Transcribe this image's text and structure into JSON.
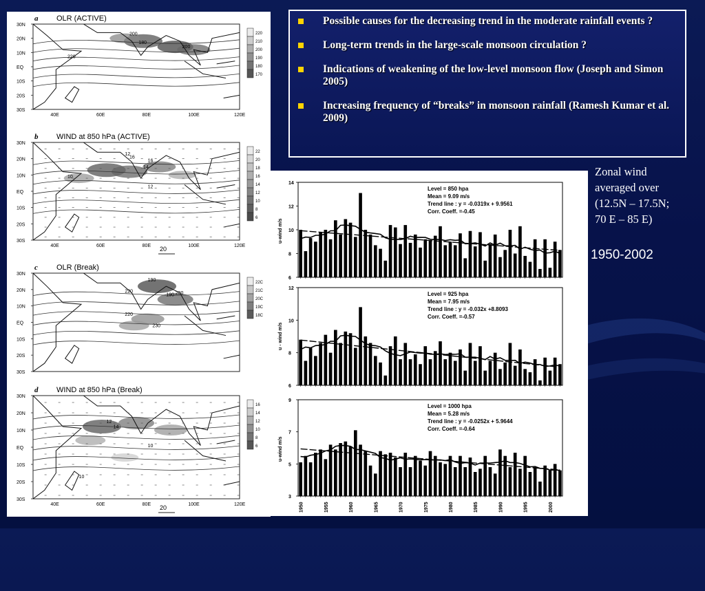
{
  "bullets": [
    "Possible causes for the decreasing trend in the moderate rainfall events ?",
    "Long-term trends in the large-scale monsoon circulation ?",
    "Indications of weakening of the low-level monsoon flow (Joseph and Simon 2005)",
    "Increasing frequency of  “breaks” in monsoon rainfall (Ramesh Kumar et al. 2009)"
  ],
  "zonal_note": [
    "Zonal wind",
    "averaged over",
    "(12.5N – 17.5N;",
    "70 E – 85 E)"
  ],
  "period": "1950-2002",
  "maps": [
    {
      "letter": "a",
      "title": "OLR (ACTIVE)",
      "show_lon": true,
      "legend": [
        "220",
        "210",
        "200",
        "190",
        "180",
        "170"
      ],
      "scale": ""
    },
    {
      "letter": "b",
      "title": "WIND at 850 hPa (ACTIVE)",
      "show_lon": true,
      "legend": [
        "22",
        "20",
        "18",
        "16",
        "14",
        "12",
        "10",
        "8",
        "6"
      ],
      "scale": "20"
    },
    {
      "letter": "c",
      "title": "OLR (Break)",
      "show_lon": false,
      "legend": [
        "22C",
        "21C",
        "20C",
        "19C",
        "18C"
      ],
      "scale": ""
    },
    {
      "letter": "d",
      "title": "WIND at 850 hPa (Break)",
      "show_lon": true,
      "legend": [
        "16",
        "14",
        "12",
        "10",
        "8",
        "6"
      ],
      "scale": "20"
    }
  ],
  "lat_labels": [
    "30N",
    "20N",
    "10N",
    "EQ",
    "10S",
    "20S",
    "30S"
  ],
  "lon_labels": [
    "40E",
    "60E",
    "80E",
    "100E",
    "120E"
  ],
  "map_annotations": [
    [
      "200",
      "180",
      "200",
      "220"
    ],
    [
      "12",
      "16",
      "14",
      "16",
      "10",
      "12"
    ],
    [
      "190",
      "190",
      "200",
      "220",
      "220",
      "230"
    ],
    [
      "12",
      "14",
      "10",
      "10"
    ]
  ],
  "chart_data": [
    {
      "type": "bar",
      "title": "Level = 850 hpa",
      "stats": [
        "Level = 850 hpa",
        "Mean = 9.09 m/s",
        "Trend line : y =  -0.0319x + 9.9561",
        "Corr. Coeff. =-0.45"
      ],
      "ylabel": "u-wind m/s",
      "ylim": [
        6,
        14
      ],
      "yticks": [
        6,
        8,
        10,
        12,
        14
      ],
      "x": [
        1950,
        1951,
        1952,
        1953,
        1954,
        1955,
        1956,
        1957,
        1958,
        1959,
        1960,
        1961,
        1962,
        1963,
        1964,
        1965,
        1966,
        1967,
        1968,
        1969,
        1970,
        1971,
        1972,
        1973,
        1974,
        1975,
        1976,
        1977,
        1978,
        1979,
        1980,
        1981,
        1982,
        1983,
        1984,
        1985,
        1986,
        1987,
        1988,
        1989,
        1990,
        1991,
        1992,
        1993,
        1994,
        1995,
        1996,
        1997,
        1998,
        1999,
        2000,
        2001,
        2002
      ],
      "values": [
        10.0,
        8.2,
        9.3,
        9.0,
        9.8,
        10.0,
        9.2,
        10.8,
        9.6,
        10.9,
        10.6,
        9.4,
        13.1,
        10.0,
        9.6,
        8.7,
        8.4,
        7.4,
        10.4,
        10.2,
        8.8,
        10.4,
        8.9,
        9.6,
        8.5,
        9.2,
        9.1,
        9.5,
        10.3,
        8.7,
        9.0,
        8.7,
        9.7,
        7.6,
        9.9,
        8.6,
        9.8,
        7.4,
        8.8,
        9.6,
        7.7,
        8.3,
        10.0,
        8.0,
        10.3,
        7.8,
        7.3,
        9.2,
        6.7,
        9.2,
        6.8,
        9.0,
        8.3
      ],
      "trend": {
        "slope": -0.0319,
        "intercept": 9.9561
      }
    },
    {
      "type": "bar",
      "title": "Level = 925 hpa",
      "stats": [
        "Level = 925 hpa",
        "Mean = 7.95 m/s",
        "Trend line : y = -0.032x +8.8093",
        "Corr. Coeff. =-0.57"
      ],
      "ylabel": "u - wind m/s",
      "ylim": [
        6,
        12
      ],
      "yticks": [
        6,
        8,
        10,
        12
      ],
      "x": [
        1950,
        1951,
        1952,
        1953,
        1954,
        1955,
        1956,
        1957,
        1958,
        1959,
        1960,
        1961,
        1962,
        1963,
        1964,
        1965,
        1966,
        1967,
        1968,
        1969,
        1970,
        1971,
        1972,
        1973,
        1974,
        1975,
        1976,
        1977,
        1978,
        1979,
        1980,
        1981,
        1982,
        1983,
        1984,
        1985,
        1986,
        1987,
        1988,
        1989,
        1990,
        1991,
        1992,
        1993,
        1994,
        1995,
        1996,
        1997,
        1998,
        1999,
        2000,
        2001,
        2002
      ],
      "values": [
        8.8,
        7.5,
        8.3,
        7.8,
        8.6,
        9.1,
        8.0,
        9.4,
        8.6,
        9.3,
        9.2,
        8.3,
        10.8,
        9.0,
        8.6,
        7.8,
        7.4,
        6.6,
        8.4,
        9.0,
        7.6,
        8.6,
        7.6,
        7.9,
        7.3,
        8.4,
        7.6,
        8.1,
        8.7,
        7.6,
        8.0,
        7.5,
        8.2,
        6.9,
        8.6,
        7.5,
        8.4,
        6.9,
        7.5,
        8.0,
        7.0,
        7.4,
        8.6,
        7.2,
        8.2,
        7.0,
        6.8,
        7.6,
        6.3,
        7.7,
        6.9,
        7.7,
        7.3
      ],
      "trend": {
        "slope": -0.032,
        "intercept": 8.8093
      }
    },
    {
      "type": "bar",
      "title": "Level = 1000 hpa",
      "stats": [
        "Level = 1000 hpa",
        "Mean = 5.28 m/s",
        "Trend line : y = -0.0252x + 5.9644",
        "Corr. Coeff. =-0.64"
      ],
      "ylabel": "u-wind m/s",
      "ylim": [
        3,
        9
      ],
      "yticks": [
        3,
        5,
        7,
        9
      ],
      "x": [
        1950,
        1951,
        1952,
        1953,
        1954,
        1955,
        1956,
        1957,
        1958,
        1959,
        1960,
        1961,
        1962,
        1963,
        1964,
        1965,
        1966,
        1967,
        1968,
        1969,
        1970,
        1971,
        1972,
        1973,
        1974,
        1975,
        1976,
        1977,
        1978,
        1979,
        1980,
        1981,
        1982,
        1983,
        1984,
        1985,
        1986,
        1987,
        1988,
        1989,
        1990,
        1991,
        1992,
        1993,
        1994,
        1995,
        1996,
        1997,
        1998,
        1999,
        2000,
        2001,
        2002
      ],
      "values": [
        5.1,
        5.5,
        5.1,
        5.7,
        5.9,
        5.3,
        6.2,
        5.9,
        6.3,
        6.4,
        6.1,
        7.1,
        6.2,
        5.8,
        4.9,
        4.4,
        5.8,
        5.6,
        5.7,
        5.4,
        4.8,
        5.7,
        4.8,
        5.5,
        5.2,
        4.9,
        5.8,
        5.5,
        5.1,
        5.0,
        5.5,
        4.8,
        5.5,
        4.8,
        5.4,
        4.5,
        4.7,
        5.5,
        4.8,
        4.4,
        5.9,
        5.5,
        4.8,
        5.7,
        4.7,
        5.5,
        4.5,
        4.8,
        3.9,
        4.9,
        4.6,
        5.0,
        4.6
      ],
      "trend": {
        "slope": -0.0252,
        "intercept": 5.9644
      }
    }
  ],
  "x_tick_years": [
    "1950",
    "1955",
    "1960",
    "1965",
    "1970",
    "1975",
    "1980",
    "1985",
    "1990",
    "1995",
    "2000"
  ]
}
